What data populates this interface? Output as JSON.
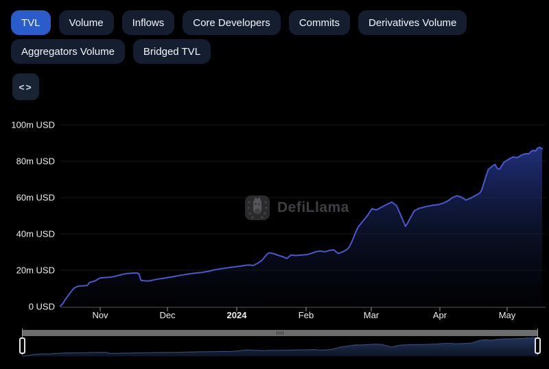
{
  "tabs": {
    "items": [
      {
        "label": "TVL",
        "active": true
      },
      {
        "label": "Volume",
        "active": false
      },
      {
        "label": "Inflows",
        "active": false
      },
      {
        "label": "Core Developers",
        "active": false
      },
      {
        "label": "Commits",
        "active": false
      },
      {
        "label": "Derivatives Volume",
        "active": false
      },
      {
        "label": "Aggregators Volume",
        "active": false
      },
      {
        "label": "Bridged TVL",
        "active": false
      }
    ]
  },
  "toolbar": {
    "embed_icon_glyph": "<>"
  },
  "watermark": {
    "label": "DefiLlama"
  },
  "colors": {
    "active_tab": "#2b5ccc",
    "inactive_tab": "#151e30",
    "line": "#4c57cc",
    "background": "#000000"
  },
  "chart_data": {
    "type": "area",
    "title": "TVL",
    "ylabel": "USD",
    "value_unit": "million USD",
    "ylim": [
      0,
      100
    ],
    "x_range": [
      "2023-10-14",
      "2024-05-16"
    ],
    "grid": "horizontal-only",
    "legend_position": "none",
    "y_ticks": [
      {
        "value": 0,
        "label": "0 USD"
      },
      {
        "value": 20,
        "label": "20m USD"
      },
      {
        "value": 40,
        "label": "40m USD"
      },
      {
        "value": 60,
        "label": "60m USD"
      },
      {
        "value": 80,
        "label": "80m USD"
      },
      {
        "value": 100,
        "label": "100m USD"
      }
    ],
    "x_ticks": [
      {
        "date": "2023-11-01",
        "label": "Nov",
        "bold": false
      },
      {
        "date": "2023-12-01",
        "label": "Dec",
        "bold": false
      },
      {
        "date": "2024-01-01",
        "label": "2024",
        "bold": true
      },
      {
        "date": "2024-02-01",
        "label": "Feb",
        "bold": false
      },
      {
        "date": "2024-03-01",
        "label": "Mar",
        "bold": false
      },
      {
        "date": "2024-04-01",
        "label": "Apr",
        "bold": false
      },
      {
        "date": "2024-05-01",
        "label": "May",
        "bold": false
      }
    ],
    "series": [
      {
        "name": "TVL",
        "color": "#4c57cc",
        "points": [
          [
            "2023-10-14",
            0.3
          ],
          [
            "2023-10-15",
            1.5
          ],
          [
            "2023-10-16",
            3.5
          ],
          [
            "2023-10-17",
            5.2
          ],
          [
            "2023-10-18",
            7.0
          ],
          [
            "2023-10-19",
            8.6
          ],
          [
            "2023-10-20",
            10.0
          ],
          [
            "2023-10-21",
            10.8
          ],
          [
            "2023-10-22",
            11.2
          ],
          [
            "2023-10-24",
            11.4
          ],
          [
            "2023-10-26",
            11.6
          ],
          [
            "2023-10-27",
            13.3
          ],
          [
            "2023-10-28",
            13.6
          ],
          [
            "2023-10-29",
            14.0
          ],
          [
            "2023-10-30",
            14.5
          ],
          [
            "2023-10-31",
            15.3
          ],
          [
            "2023-11-01",
            15.8
          ],
          [
            "2023-11-03",
            16.0
          ],
          [
            "2023-11-05",
            16.2
          ],
          [
            "2023-11-07",
            16.5
          ],
          [
            "2023-11-09",
            17.2
          ],
          [
            "2023-11-11",
            17.8
          ],
          [
            "2023-11-13",
            18.2
          ],
          [
            "2023-11-15",
            18.4
          ],
          [
            "2023-11-17",
            18.5
          ],
          [
            "2023-11-18",
            18.1
          ],
          [
            "2023-11-19",
            14.4
          ],
          [
            "2023-11-21",
            14.1
          ],
          [
            "2023-11-23",
            14.2
          ],
          [
            "2023-11-25",
            14.8
          ],
          [
            "2023-11-27",
            15.2
          ],
          [
            "2023-11-29",
            15.6
          ],
          [
            "2023-12-01",
            16.0
          ],
          [
            "2023-12-04",
            16.6
          ],
          [
            "2023-12-07",
            17.3
          ],
          [
            "2023-12-10",
            17.9
          ],
          [
            "2023-12-13",
            18.4
          ],
          [
            "2023-12-16",
            18.8
          ],
          [
            "2023-12-19",
            19.4
          ],
          [
            "2023-12-22",
            20.3
          ],
          [
            "2023-12-25",
            20.9
          ],
          [
            "2023-12-28",
            21.4
          ],
          [
            "2023-12-31",
            21.9
          ],
          [
            "2024-01-03",
            22.4
          ],
          [
            "2024-01-06",
            22.9
          ],
          [
            "2024-01-08",
            22.6
          ],
          [
            "2024-01-10",
            23.8
          ],
          [
            "2024-01-12",
            25.5
          ],
          [
            "2024-01-14",
            28.5
          ],
          [
            "2024-01-15",
            29.6
          ],
          [
            "2024-01-17",
            29.2
          ],
          [
            "2024-01-19",
            28.3
          ],
          [
            "2024-01-21",
            27.6
          ],
          [
            "2024-01-23",
            26.5
          ],
          [
            "2024-01-25",
            28.4
          ],
          [
            "2024-01-27",
            28.1
          ],
          [
            "2024-01-29",
            28.3
          ],
          [
            "2024-02-01",
            28.6
          ],
          [
            "2024-02-03",
            29.3
          ],
          [
            "2024-02-05",
            30.2
          ],
          [
            "2024-02-07",
            30.6
          ],
          [
            "2024-02-09",
            30.1
          ],
          [
            "2024-02-11",
            30.9
          ],
          [
            "2024-02-13",
            31.2
          ],
          [
            "2024-02-15",
            29.2
          ],
          [
            "2024-02-17",
            30.1
          ],
          [
            "2024-02-19",
            31.5
          ],
          [
            "2024-02-20",
            33.0
          ],
          [
            "2024-02-21",
            35.5
          ],
          [
            "2024-02-22",
            38.5
          ],
          [
            "2024-02-23",
            41.5
          ],
          [
            "2024-02-24",
            44.0
          ],
          [
            "2024-02-26",
            47.0
          ],
          [
            "2024-02-28",
            50.0
          ],
          [
            "2024-03-01",
            53.8
          ],
          [
            "2024-03-03",
            53.2
          ],
          [
            "2024-03-05",
            54.5
          ],
          [
            "2024-03-07",
            55.8
          ],
          [
            "2024-03-09",
            57.0
          ],
          [
            "2024-03-10",
            57.5
          ],
          [
            "2024-03-12",
            55.5
          ],
          [
            "2024-03-14",
            50.0
          ],
          [
            "2024-03-16",
            44.2
          ],
          [
            "2024-03-17",
            46.0
          ],
          [
            "2024-03-18",
            48.5
          ],
          [
            "2024-03-20",
            52.8
          ],
          [
            "2024-03-22",
            54.0
          ],
          [
            "2024-03-25",
            55.0
          ],
          [
            "2024-03-28",
            55.7
          ],
          [
            "2024-03-31",
            56.2
          ],
          [
            "2024-04-02",
            57.0
          ],
          [
            "2024-04-04",
            58.2
          ],
          [
            "2024-04-06",
            60.0
          ],
          [
            "2024-04-08",
            61.0
          ],
          [
            "2024-04-10",
            60.2
          ],
          [
            "2024-04-12",
            58.6
          ],
          [
            "2024-04-14",
            59.6
          ],
          [
            "2024-04-16",
            61.0
          ],
          [
            "2024-04-18",
            62.3
          ],
          [
            "2024-04-19",
            64.0
          ],
          [
            "2024-04-20",
            68.0
          ],
          [
            "2024-04-21",
            72.0
          ],
          [
            "2024-04-22",
            75.5
          ],
          [
            "2024-04-24",
            77.5
          ],
          [
            "2024-04-25",
            78.2
          ],
          [
            "2024-04-26",
            76.0
          ],
          [
            "2024-04-27",
            75.6
          ],
          [
            "2024-04-28",
            77.5
          ],
          [
            "2024-04-29",
            79.5
          ],
          [
            "2024-05-01",
            81.0
          ],
          [
            "2024-05-03",
            82.3
          ],
          [
            "2024-05-05",
            82.0
          ],
          [
            "2024-05-07",
            83.5
          ],
          [
            "2024-05-09",
            84.2
          ],
          [
            "2024-05-10",
            84.0
          ],
          [
            "2024-05-11",
            85.3
          ],
          [
            "2024-05-12",
            86.0
          ],
          [
            "2024-05-13",
            85.5
          ],
          [
            "2024-05-14",
            87.3
          ],
          [
            "2024-05-15",
            87.6
          ],
          [
            "2024-05-16",
            86.8
          ]
        ]
      }
    ],
    "brush": {
      "selection": "full-range",
      "shows": "same TVL series miniature"
    }
  }
}
